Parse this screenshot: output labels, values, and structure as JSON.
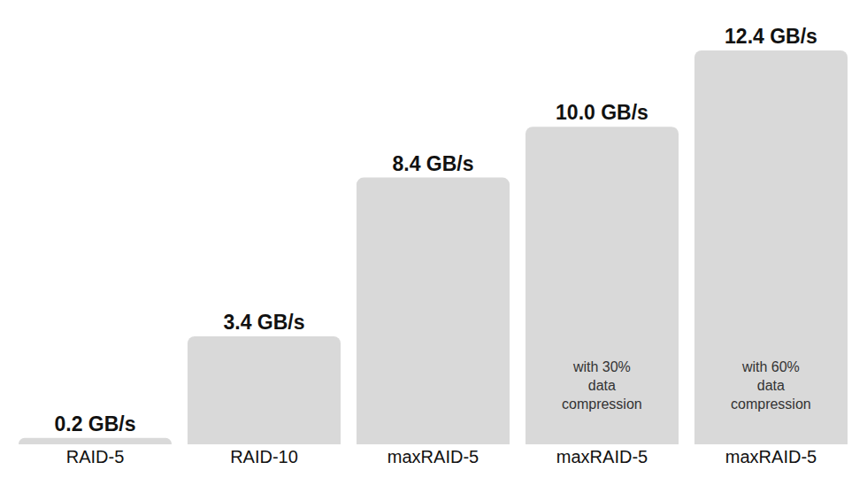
{
  "chart_data": {
    "type": "bar",
    "categories": [
      "RAID-5",
      "RAID-10",
      "maxRAID-5",
      "maxRAID-5",
      "maxRAID-5"
    ],
    "values": [
      0.2,
      3.4,
      8.4,
      10.0,
      12.4
    ],
    "value_labels": [
      "0.2 GB/s",
      "3.4 GB/s",
      "8.4 GB/s",
      "10.0 GB/s",
      "12.4 GB/s"
    ],
    "annotations": [
      null,
      null,
      null,
      "with 30%\ndata\ncompression",
      "with 60%\ndata\ncompression"
    ],
    "color": "#d9d9d9",
    "ylim": [
      0,
      12.4
    ],
    "data_labels": true,
    "tick_labels": "x",
    "grid": false
  }
}
